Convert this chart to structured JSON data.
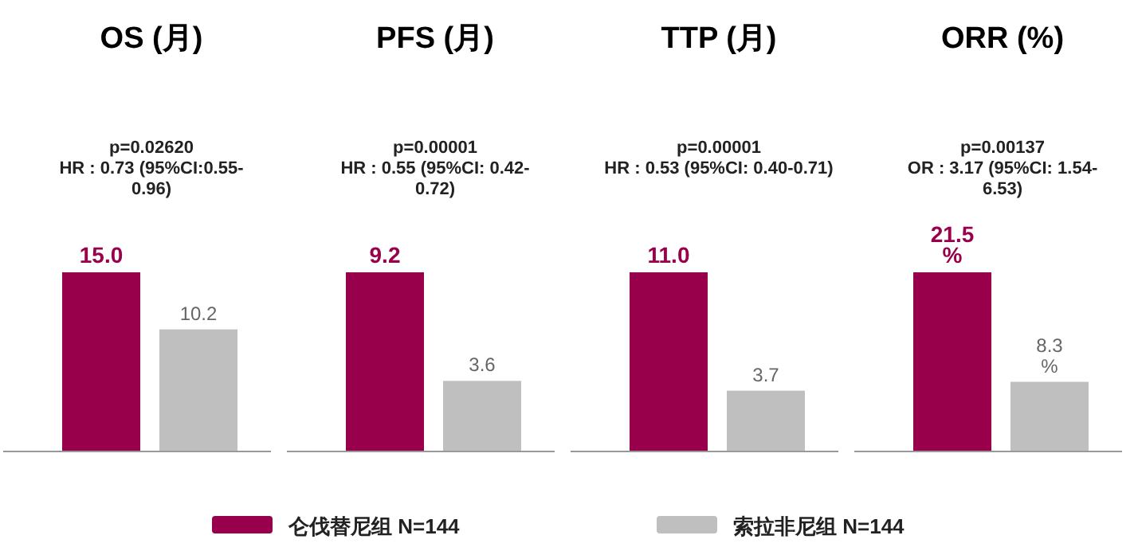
{
  "chart_data": [
    {
      "type": "bar",
      "title": "OS (月)",
      "annotations": [
        "p=0.02620\nHR : 0.73 (95%CI:0.55-\n0.96)"
      ],
      "categories": [
        null
      ],
      "legend": "bottom",
      "series": [
        {
          "name": "仑伐替尼组 N=144",
          "color": "#99004c",
          "values": [
            15.0
          ],
          "value_labels": [
            "15.0"
          ]
        },
        {
          "name": "索拉非尼组 N=144",
          "color": "#bfbfbf",
          "values": [
            10.2
          ],
          "value_labels": [
            "10.2"
          ]
        }
      ]
    },
    {
      "type": "bar",
      "title": "PFS (月)",
      "annotations": [
        "p=0.00001\nHR : 0.55 (95%CI: 0.42-\n0.72)"
      ],
      "categories": [
        null
      ],
      "series": [
        {
          "color": "#99004c",
          "values": [
            9.2
          ],
          "value_labels": [
            "9.2"
          ]
        },
        {
          "color": "#bfbfbf",
          "values": [
            3.6
          ],
          "value_labels": [
            "3.6"
          ]
        }
      ]
    },
    {
      "type": "bar",
      "title": "TTP (月)",
      "annotations": [
        "p=0.00001\nHR : 0.53 (95%CI: 0.40-0.71)"
      ],
      "categories": [
        null
      ],
      "series": [
        {
          "color": "#99004c",
          "values": [
            11.0
          ],
          "value_labels": [
            "11.0"
          ]
        },
        {
          "color": "#bfbfbf",
          "values": [
            3.7
          ],
          "value_labels": [
            "3.7"
          ]
        }
      ]
    },
    {
      "type": "bar",
      "title": "ORR (%)",
      "annotations": [
        "p=0.00137\nOR : 3.17 (95%CI: 1.54-\n6.53)"
      ],
      "categories": [
        null
      ],
      "series": [
        {
          "color": "#99004c",
          "values": [
            21.5
          ],
          "value_labels": [
            "21.5\n%"
          ]
        },
        {
          "color": "#bfbfbf",
          "values": [
            8.3
          ],
          "value_labels": [
            "8.3\n%"
          ]
        }
      ]
    }
  ]
}
